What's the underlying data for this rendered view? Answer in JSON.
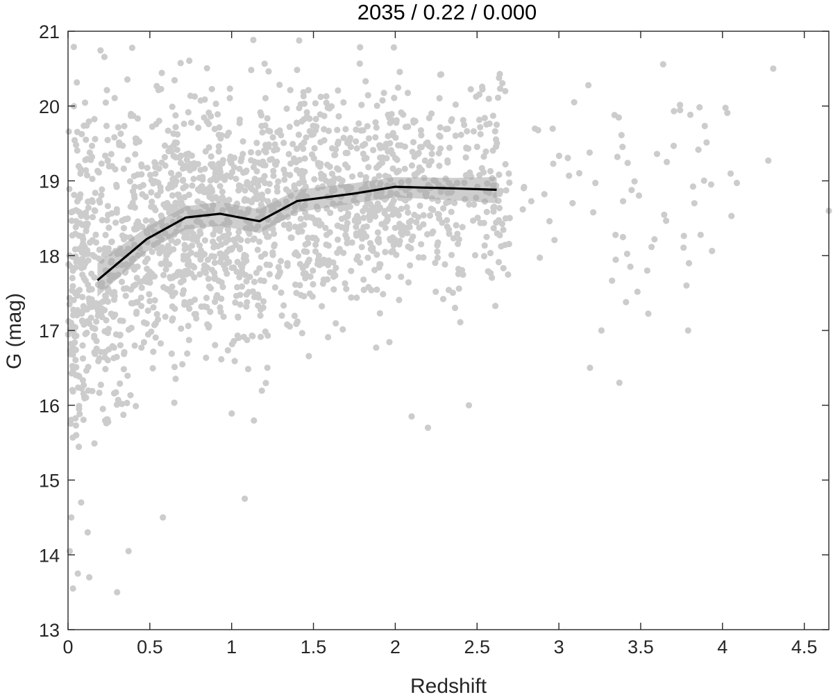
{
  "chart_data": {
    "type": "scatter",
    "title": "2035 / 0.22 / 0.000",
    "xlabel": "Redshift",
    "ylabel": "G (mag)",
    "xlim": [
      0,
      4.65
    ],
    "ylim": [
      13,
      21
    ],
    "xticks": [
      0,
      0.5,
      1,
      1.5,
      2,
      2.5,
      3,
      3.5,
      4,
      4.5
    ],
    "xtick_labels": [
      "0",
      "0.5",
      "1",
      "1.5",
      "2",
      "2.5",
      "3",
      "3.5",
      "4",
      "4.5"
    ],
    "yticks": [
      13,
      14,
      15,
      16,
      17,
      18,
      19,
      20,
      21
    ],
    "ytick_labels": [
      "13",
      "14",
      "15",
      "16",
      "17",
      "18",
      "19",
      "20",
      "21"
    ],
    "grid": false,
    "colors": {
      "points": "#cccccc",
      "trend": "#000000",
      "band": "#a6a6a6",
      "axes": "#262626"
    },
    "trend": {
      "x": [
        0.18,
        0.48,
        0.72,
        0.93,
        1.17,
        1.4,
        1.75,
        2.0,
        2.35,
        2.62
      ],
      "y": [
        17.67,
        18.22,
        18.51,
        18.56,
        18.46,
        18.73,
        18.83,
        18.92,
        18.9,
        18.88
      ],
      "y_lower": [
        17.45,
        18.05,
        18.35,
        18.4,
        18.3,
        18.58,
        18.7,
        18.78,
        18.74,
        18.7
      ],
      "y_upper": [
        17.9,
        18.38,
        18.66,
        18.72,
        18.62,
        18.88,
        18.97,
        19.05,
        19.04,
        19.05
      ]
    },
    "outlier_points": {
      "x": [
        0.01,
        0.02,
        0.03,
        0.05,
        0.06,
        0.08,
        0.12,
        0.13,
        0.3,
        0.37,
        0.58,
        1.08,
        2.1,
        2.2,
        2.45,
        3.19,
        3.26,
        3.37,
        3.54,
        3.78,
        3.79,
        4.28,
        4.31,
        4.65
      ],
      "y": [
        14.05,
        14.5,
        13.55,
        15.6,
        13.75,
        14.7,
        14.3,
        13.7,
        13.5,
        14.05,
        14.5,
        14.75,
        15.85,
        15.7,
        16.0,
        16.5,
        17.0,
        16.3,
        17.8,
        17.6,
        17.0,
        19.27,
        20.5,
        18.6
      ]
    }
  }
}
